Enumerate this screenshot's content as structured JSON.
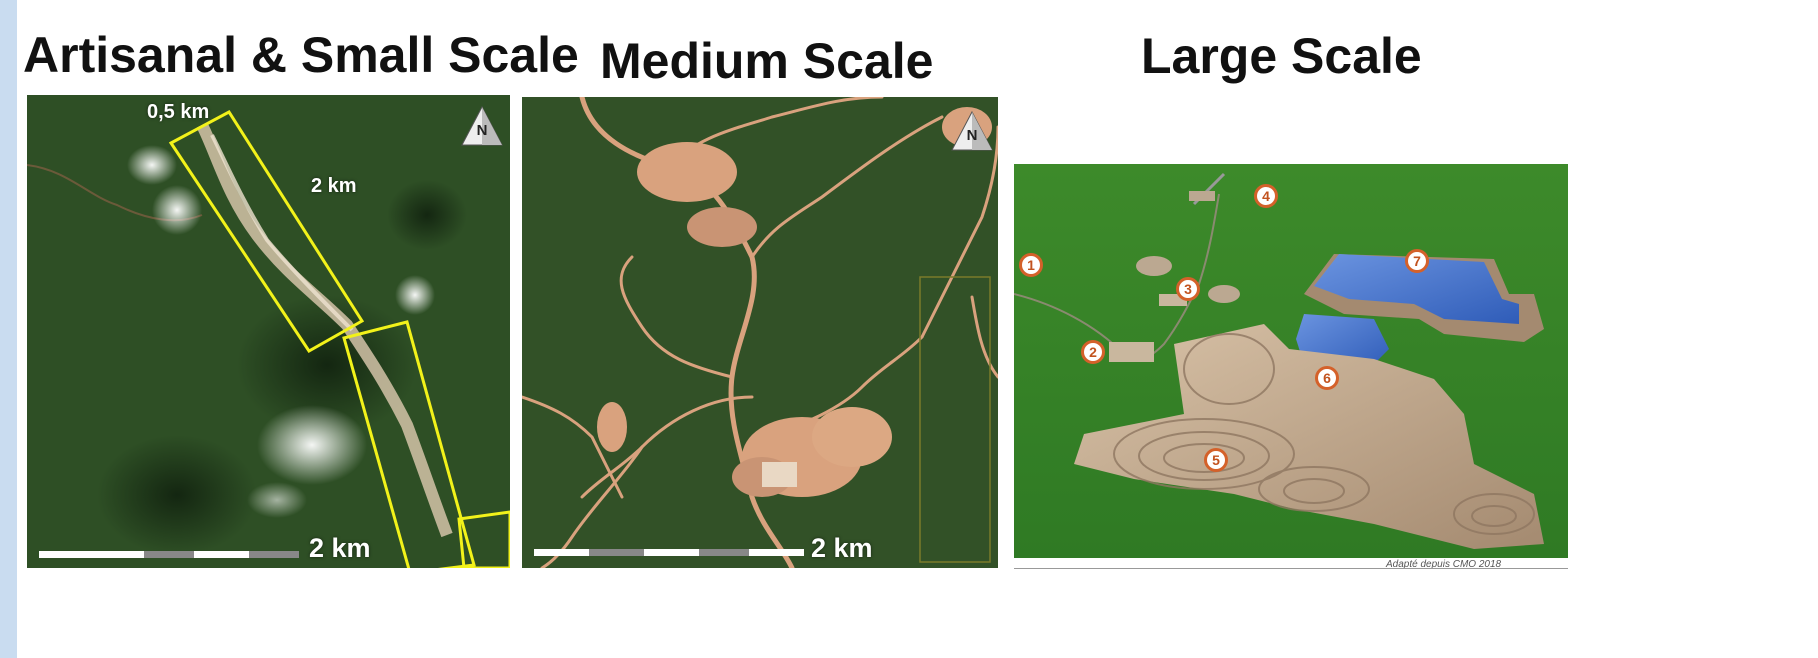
{
  "titles": {
    "artisanal": "Artisanal & Small Scale",
    "medium": "Medium Scale",
    "large": "Large Scale"
  },
  "panel_artisanal": {
    "width_label": "0,5 km",
    "length_label": "2 km",
    "scale_label": "2 km",
    "north_label": "N"
  },
  "panel_medium": {
    "scale_label": "2 km",
    "north_label": "N"
  },
  "panel_large": {
    "markers": [
      "1",
      "2",
      "3",
      "4",
      "5",
      "6",
      "7"
    ],
    "credit": "Adapté  depuis  CMO  2018"
  },
  "colors": {
    "forest": "#2e4a22",
    "mining_scar": "#d9a27e",
    "outline_yellow": "#f2f21a",
    "pit_water": "#3d6cc4",
    "marker_orange": "#d4612a",
    "accent_bar": "#c9dcf0"
  }
}
